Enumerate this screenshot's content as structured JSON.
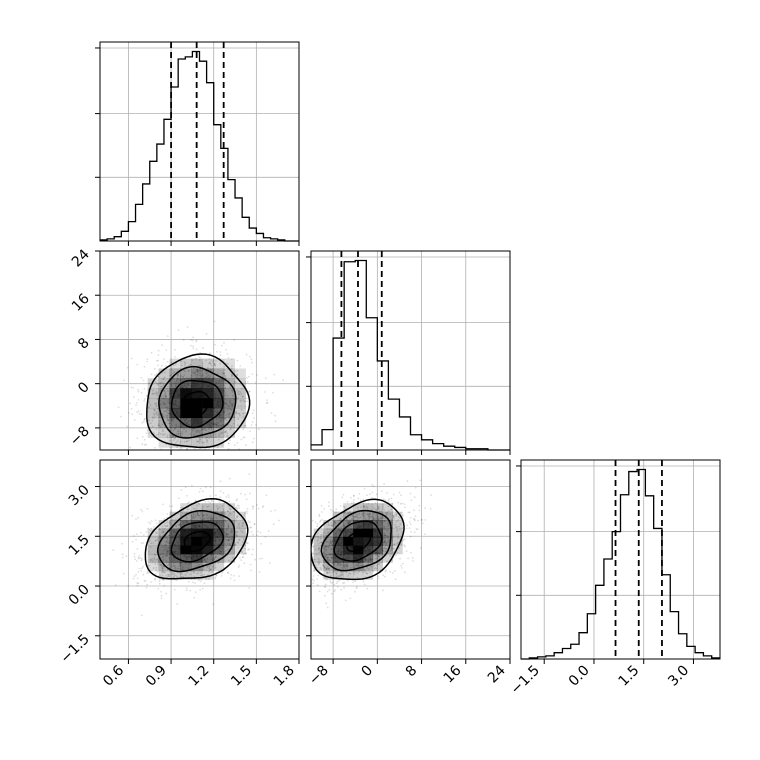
{
  "chart_data": {
    "type": "corner",
    "grid": true,
    "axes": [
      {
        "name": "param0",
        "range": [
          0.4,
          1.8
        ],
        "ticks": [
          0.6,
          0.9,
          1.2,
          1.5,
          1.8
        ],
        "tick_labels": [
          "0.6",
          "0.9",
          "1.2",
          "1.5",
          "1.8"
        ],
        "quantiles": [
          0.9,
          1.08,
          1.27
        ],
        "hist_bin_edges": [
          0.4,
          0.45,
          0.5,
          0.55,
          0.6,
          0.65,
          0.7,
          0.75,
          0.8,
          0.85,
          0.9,
          0.95,
          1.0,
          1.05,
          1.1,
          1.15,
          1.2,
          1.25,
          1.3,
          1.35,
          1.4,
          1.45,
          1.5,
          1.55,
          1.6,
          1.65,
          1.7,
          1.75,
          1.8
        ],
        "hist_values": [
          1,
          2,
          4,
          9,
          18,
          34,
          53,
          74,
          90,
          113,
          143,
          169,
          171,
          176,
          167,
          147,
          108,
          86,
          57,
          40,
          22,
          12,
          7,
          3,
          2,
          1,
          0,
          0
        ]
      },
      {
        "name": "param1",
        "range": [
          -12,
          24
        ],
        "ticks": [
          -8,
          0,
          8,
          16,
          24
        ],
        "tick_labels": [
          "−8",
          "0",
          "8",
          "16",
          "24"
        ],
        "quantiles": [
          -6.5,
          -3.5,
          0.8
        ],
        "hist_bin_edges": [
          -12,
          -10,
          -8,
          -6,
          -4,
          -2,
          0,
          2,
          4,
          6,
          8,
          10,
          12,
          14,
          16,
          18,
          20,
          22,
          24
        ],
        "hist_values": [
          4,
          16,
          88,
          148,
          149,
          104,
          70,
          40,
          26,
          12,
          8,
          5,
          3,
          2,
          1,
          1,
          0,
          0
        ]
      },
      {
        "name": "param2",
        "range": [
          -2.2,
          3.8
        ],
        "ticks": [
          -1.5,
          0.0,
          1.5,
          3.0
        ],
        "tick_labels": [
          "−1.5",
          "0.0",
          "1.5",
          "3.0"
        ],
        "quantiles": [
          0.65,
          1.35,
          2.05
        ],
        "hist_bin_edges": [
          -2.2,
          -1.95,
          -1.7,
          -1.45,
          -1.2,
          -0.95,
          -0.7,
          -0.45,
          -0.2,
          0.05,
          0.3,
          0.55,
          0.8,
          1.05,
          1.3,
          1.55,
          1.8,
          2.05,
          2.3,
          2.55,
          2.8,
          3.05,
          3.3,
          3.55,
          3.8
        ],
        "hist_values": [
          0,
          1,
          2,
          3,
          6,
          10,
          14,
          25,
          43,
          70,
          95,
          121,
          156,
          178,
          180,
          155,
          124,
          80,
          45,
          24,
          12,
          6,
          3,
          1
        ]
      }
    ],
    "pairs": [
      {
        "x_axis": 0,
        "y_axis": 1,
        "mean": [
          1.08,
          -3.5
        ],
        "std": [
          0.18,
          4.2
        ],
        "corr": 0.05,
        "contour_radii_sigma": [
          0.5,
          1.0,
          1.5,
          2.0
        ]
      },
      {
        "x_axis": 0,
        "y_axis": 2,
        "mean": [
          1.08,
          1.35
        ],
        "std": [
          0.18,
          0.6
        ],
        "corr": 0.3,
        "contour_radii_sigma": [
          0.5,
          1.0,
          1.5,
          2.0
        ]
      },
      {
        "x_axis": 1,
        "y_axis": 2,
        "mean": [
          -3.5,
          1.35
        ],
        "std": [
          4.2,
          0.6
        ],
        "corr": 0.3,
        "contour_radii_sigma": [
          0.5,
          1.0,
          1.5,
          2.0
        ]
      }
    ]
  }
}
